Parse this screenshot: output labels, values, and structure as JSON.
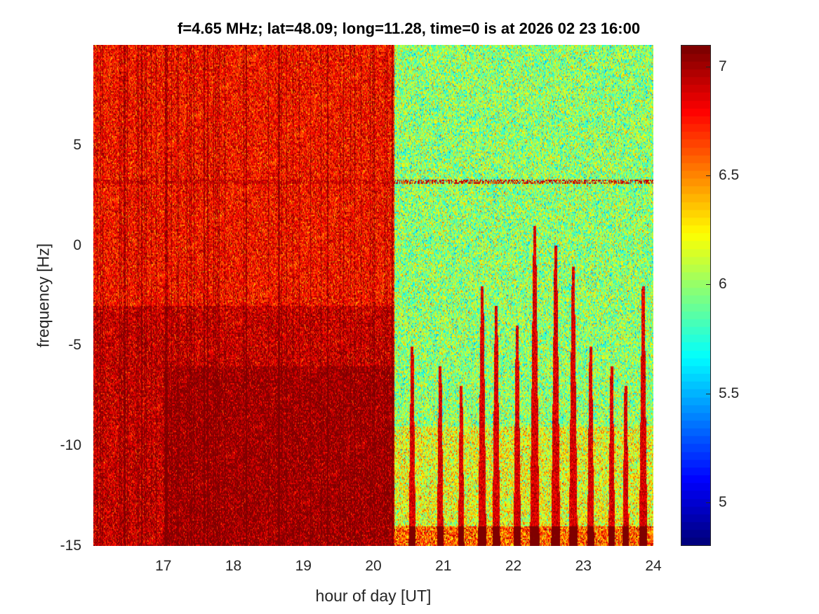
{
  "chart_data": {
    "type": "heatmap",
    "title": "f=4.65 MHz;  lat=48.09; long=11.28, time=0 is at 2026 02 23 16:00",
    "xlabel": "hour of day [UT]",
    "ylabel": "frequency [Hz]",
    "xlim": [
      16,
      24
    ],
    "ylim": [
      -15,
      10
    ],
    "xticks": [
      "17",
      "18",
      "19",
      "20",
      "21",
      "22",
      "23",
      "24"
    ],
    "yticks": [
      "5",
      "0",
      "-5",
      "-10",
      "-15"
    ],
    "colormap": "jet",
    "clim": [
      4.8,
      7.1
    ],
    "colorbar_ticks": [
      "7",
      "6.5",
      "6",
      "5.5",
      "5"
    ],
    "grid": false,
    "features": {
      "transition_hour": 20.3,
      "level_before_transition": 6.8,
      "level_after_transition": 6.0,
      "horizontal_line_freq_hz": 3.2,
      "streak_hours": [
        20.55,
        20.95,
        21.25,
        21.55,
        21.75,
        22.05,
        22.3,
        22.6,
        22.85,
        23.1,
        23.4,
        23.6,
        23.85
      ]
    }
  }
}
